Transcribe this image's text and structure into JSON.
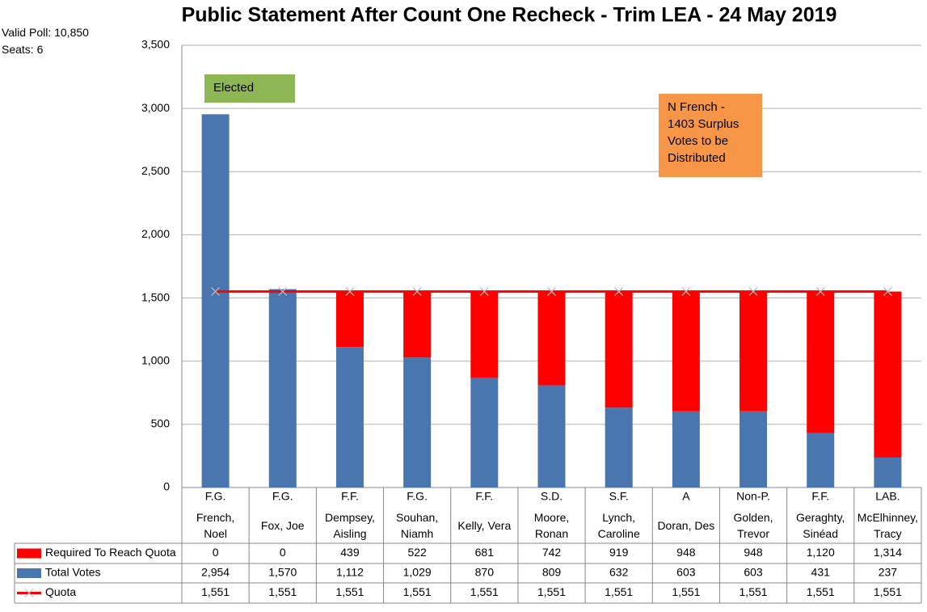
{
  "chart_data": {
    "type": "stacked_bar_line",
    "title": "Public Statement After Count One Recheck - Trim LEA - 24 May 2019",
    "info": [
      "Valid Poll: 10,850",
      "Seats: 6"
    ],
    "parties": [
      "F.G.",
      "F.G.",
      "F.F.",
      "F.G.",
      "F.F.",
      "S.D.",
      "S.F.",
      "A",
      "Non-P.",
      "F.F.",
      "LAB."
    ],
    "categories": [
      "French, Noel",
      "Fox, Joe",
      "Dempsey, Aisling",
      "Souhan, Niamh",
      "Kelly, Vera",
      "Moore, Ronan",
      "Lynch, Caroline",
      "Doran, Des",
      "Golden, Trevor",
      "Geraghty, Sinéad",
      "McElhinney, Tracy"
    ],
    "series": [
      {
        "name": "Required To Reach Quota",
        "color": "#ff0000",
        "kind": "bar",
        "values": [
          0,
          0,
          439,
          522,
          681,
          742,
          919,
          948,
          948,
          1120,
          1314
        ],
        "value_labels": [
          "0",
          "0",
          "439",
          "522",
          "681",
          "742",
          "919",
          "948",
          "948",
          "1,120",
          "1,314"
        ]
      },
      {
        "name": "Total Votes",
        "color": "#4a76b0",
        "kind": "bar",
        "values": [
          2954,
          1570,
          1112,
          1029,
          870,
          809,
          632,
          603,
          603,
          431,
          237
        ],
        "value_labels": [
          "2,954",
          "1,570",
          "1,112",
          "1,029",
          "870",
          "809",
          "632",
          "603",
          "603",
          "431",
          "237"
        ]
      },
      {
        "name": "Quota",
        "color": "#ff0000",
        "kind": "line",
        "values": [
          1551,
          1551,
          1551,
          1551,
          1551,
          1551,
          1551,
          1551,
          1551,
          1551,
          1551
        ],
        "value_labels": [
          "1,551",
          "1,551",
          "1,551",
          "1,551",
          "1,551",
          "1,551",
          "1,551",
          "1,551",
          "1,551",
          "1,551",
          "1,551"
        ]
      }
    ],
    "ylim": [
      0,
      3500
    ],
    "yticks": [
      0,
      500,
      {
        "value": 1000,
        "label": "1,000"
      },
      {
        "value": 1500,
        "label": "1,500"
      },
      {
        "value": 2000,
        "label": "2,000"
      },
      {
        "value": 2500,
        "label": "2,500"
      },
      {
        "value": 3000,
        "label": "3,000"
      },
      {
        "value": 3500,
        "label": "3,500"
      }
    ],
    "grid": true,
    "annotations": [
      {
        "text": "Elected",
        "color": "#8db654"
      },
      {
        "text": "N French - 1403 Surplus Votes to be Distributed",
        "color": "#f79646"
      }
    ]
  }
}
